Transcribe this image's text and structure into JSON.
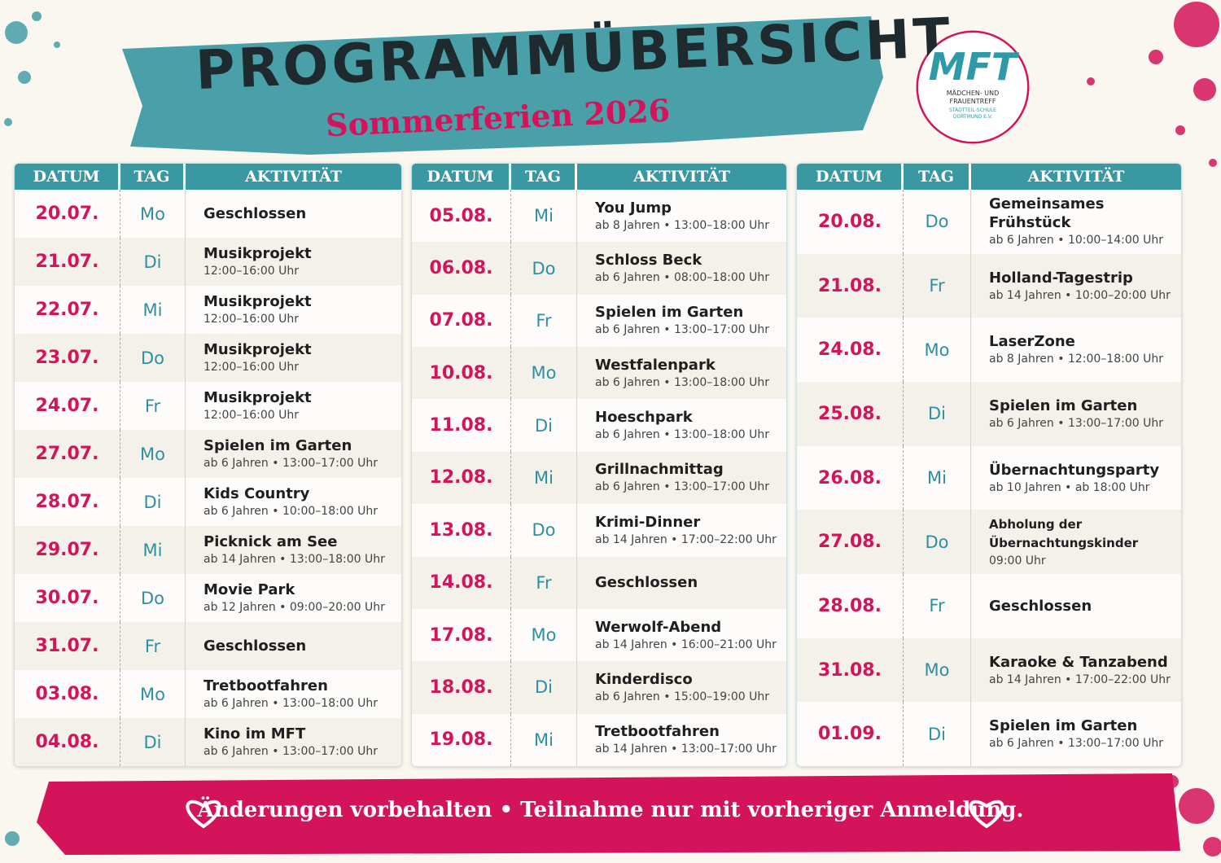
{
  "header": {
    "title": "PROGRAMMÜBERSICHT",
    "subtitle": "Sommerferien 2026"
  },
  "logo": {
    "mark": "MFT",
    "name": "MÄDCHEN- UND FRAUENTREFF",
    "org": "STADTTEIL-SCHULE DORTMUND E.V."
  },
  "columns": [
    "DATUM",
    "TAG",
    "AKTIVITÄT"
  ],
  "tables": [
    {
      "rows": [
        {
          "date": "20.07.",
          "day": "Mo",
          "title": "Geschlossen"
        },
        {
          "date": "21.07.",
          "day": "Di",
          "title": "Musikprojekt",
          "info": "12:00–16:00 Uhr"
        },
        {
          "date": "22.07.",
          "day": "Mi",
          "title": "Musikprojekt",
          "info": "12:00–16:00 Uhr"
        },
        {
          "date": "23.07.",
          "day": "Do",
          "title": "Musikprojekt",
          "info": "12:00–16:00 Uhr"
        },
        {
          "date": "24.07.",
          "day": "Fr",
          "title": "Musikprojekt",
          "info": "12:00–16:00 Uhr"
        },
        {
          "date": "27.07.",
          "day": "Mo",
          "title": "Spielen im Garten",
          "info": "ab 6 Jahren • 13:00–17:00 Uhr"
        },
        {
          "date": "28.07.",
          "day": "Di",
          "title": "Kids Country",
          "info": "ab 6 Jahren • 10:00–18:00 Uhr"
        },
        {
          "date": "29.07.",
          "day": "Mi",
          "title": "Picknick am See",
          "info": "ab 14 Jahren • 13:00–18:00 Uhr"
        },
        {
          "date": "30.07.",
          "day": "Do",
          "title": "Movie Park",
          "info": "ab 12 Jahren • 09:00–20:00 Uhr"
        },
        {
          "date": "31.07.",
          "day": "Fr",
          "title": "Geschlossen"
        },
        {
          "date": "03.08.",
          "day": "Mo",
          "title": "Tretbootfahren",
          "info": "ab 6 Jahren • 13:00–18:00 Uhr"
        },
        {
          "date": "04.08.",
          "day": "Di",
          "title": "Kino im MFT",
          "info": "ab 6 Jahren • 13:00–17:00 Uhr"
        }
      ]
    },
    {
      "rows": [
        {
          "date": "05.08.",
          "day": "Mi",
          "title": "You Jump",
          "info": "ab 8 Jahren • 13:00–18:00 Uhr"
        },
        {
          "date": "06.08.",
          "day": "Do",
          "title": "Schloss Beck",
          "info": "ab 6 Jahren • 08:00–18:00 Uhr"
        },
        {
          "date": "07.08.",
          "day": "Fr",
          "title": "Spielen im Garten",
          "info": "ab 6 Jahren • 13:00–17:00 Uhr"
        },
        {
          "date": "10.08.",
          "day": "Mo",
          "title": "Westfalenpark",
          "info": "ab 6 Jahren • 13:00–18:00 Uhr"
        },
        {
          "date": "11.08.",
          "day": "Di",
          "title": "Hoeschpark",
          "info": "ab 6 Jahren • 13:00–18:00 Uhr"
        },
        {
          "date": "12.08.",
          "day": "Mi",
          "title": "Grillnachmittag",
          "info": "ab 6 Jahren • 13:00–17:00 Uhr"
        },
        {
          "date": "13.08.",
          "day": "Do",
          "title": "Krimi-Dinner",
          "info": "ab 14 Jahren • 17:00–22:00 Uhr"
        },
        {
          "date": "14.08.",
          "day": "Fr",
          "title": "Geschlossen"
        },
        {
          "date": "17.08.",
          "day": "Mo",
          "title": "Werwolf-Abend",
          "info": "ab 14 Jahren • 16:00–21:00 Uhr"
        },
        {
          "date": "18.08.",
          "day": "Di",
          "title": "Kinderdisco",
          "info": "ab 6 Jahren • 15:00–19:00 Uhr"
        },
        {
          "date": "19.08.",
          "day": "Mi",
          "title": "Tretbootfahren",
          "info": "ab 14 Jahren • 13:00–17:00 Uhr"
        }
      ]
    },
    {
      "rows": [
        {
          "date": "20.08.",
          "day": "Do",
          "title": "Gemeinsames Frühstück",
          "info": "ab 6 Jahren • 10:00–14:00 Uhr"
        },
        {
          "date": "21.08.",
          "day": "Fr",
          "title": "Holland-Tagestrip",
          "info": "ab 14 Jahren • 10:00–20:00 Uhr"
        },
        {
          "date": "24.08.",
          "day": "Mo",
          "title": "LaserZone",
          "info": "ab 8 Jahren • 12:00–18:00 Uhr"
        },
        {
          "date": "25.08.",
          "day": "Di",
          "title": "Spielen im Garten",
          "info": "ab 6 Jahren • 13:00–17:00 Uhr"
        },
        {
          "date": "26.08.",
          "day": "Mi",
          "title": "Übernachtungsparty",
          "info": "ab 10 Jahren • ab 18:00 Uhr"
        },
        {
          "date": "27.08.",
          "day": "Do",
          "title": "Abholung der Übernachtungskinder",
          "info": "09:00 Uhr"
        },
        {
          "date": "28.08.",
          "day": "Fr",
          "title": "Geschlossen"
        },
        {
          "date": "31.08.",
          "day": "Mo",
          "title": "Karaoke & Tanzabend",
          "info": "ab 14 Jahren • 17:00–22:00 Uhr"
        },
        {
          "date": "01.09.",
          "day": "Di",
          "title": "Spielen im Garten",
          "info": "ab 6 Jahren • 13:00–17:00 Uhr"
        }
      ]
    }
  ],
  "footer": "Änderungen vorbehalten • Teilnahme nur mit vorheriger Anmeldung."
}
